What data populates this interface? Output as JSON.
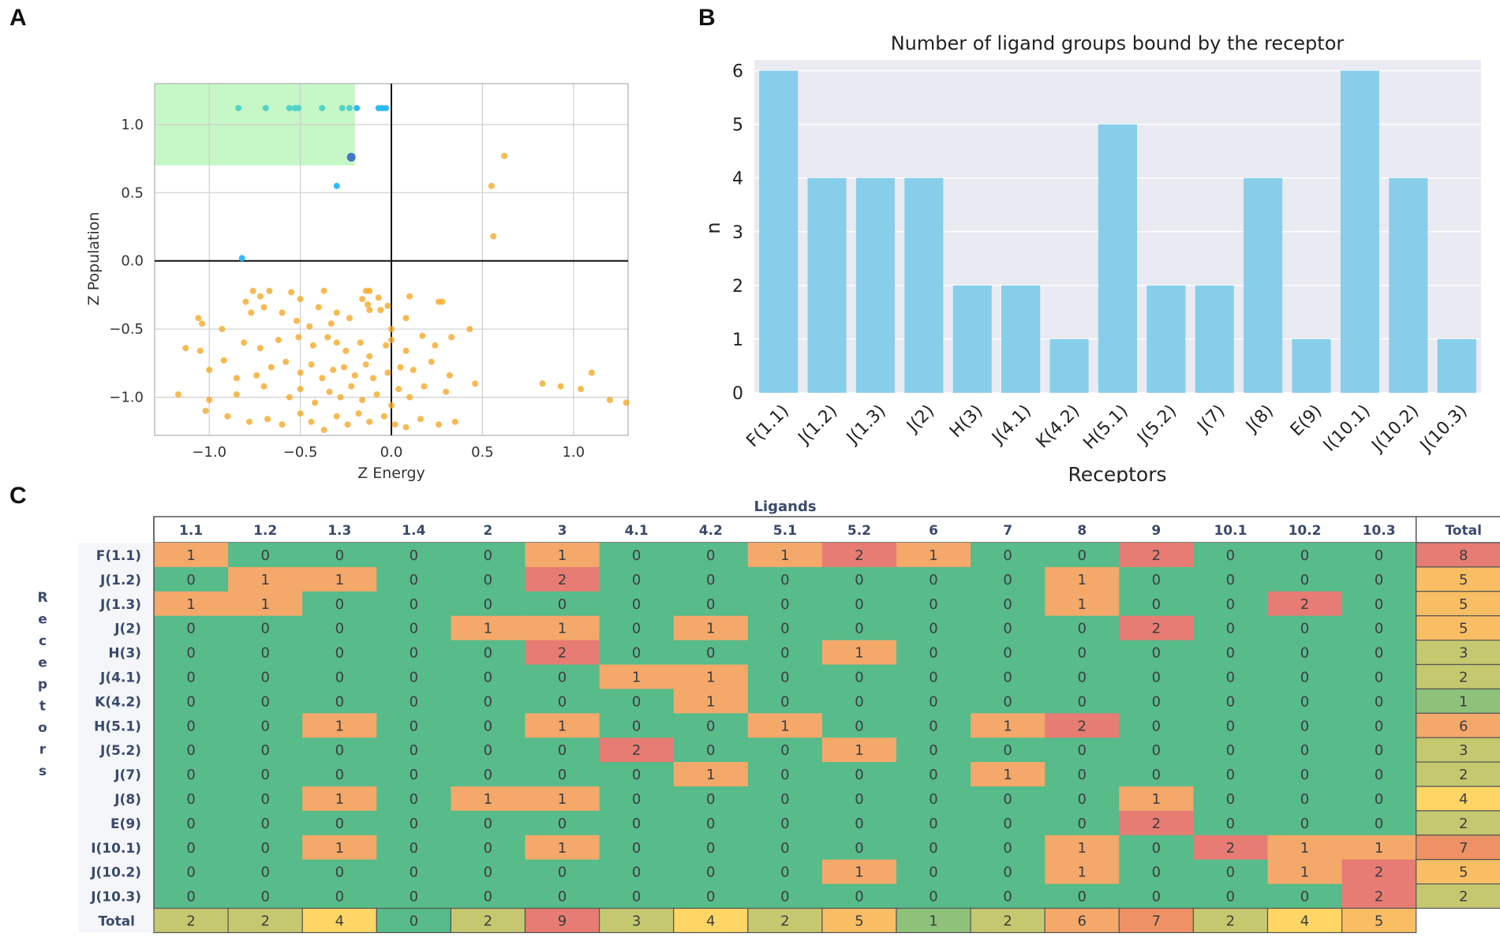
{
  "panels": {
    "a": "A",
    "b": "B",
    "c": "C"
  },
  "chart_data": [
    {
      "type": "scatter",
      "title": "",
      "xlabel": "Z Energy",
      "ylabel": "Z Population",
      "xlim": [
        -1.3,
        1.3
      ],
      "ylim": [
        -1.28,
        1.3
      ],
      "xticks": [
        -1.0,
        -0.5,
        0.0,
        0.5,
        1.0
      ],
      "xtick_labels": [
        "−1.0",
        "−0.5",
        "0.0",
        "0.5",
        "1.0"
      ],
      "yticks": [
        -1.0,
        -0.5,
        0.0,
        0.5,
        1.0
      ],
      "ytick_labels": [
        "−1.0",
        "−0.5",
        "0.0",
        "0.5",
        "1.0"
      ],
      "grid": true,
      "highlight_region": {
        "x": [
          -1.3,
          -0.2
        ],
        "y": [
          0.7,
          1.3
        ],
        "color": "#c6f7c6"
      },
      "colors": {
        "orange": "#f5a623",
        "light_blue": "#29b6f6",
        "teal": "#4dd0c8",
        "dark_blue": "#3a6ec8"
      },
      "series": [
        {
          "name": "highlighted-teal",
          "color": "#4dd0c8",
          "points": [
            [
              -0.84,
              1.12
            ],
            [
              -0.69,
              1.12
            ],
            [
              -0.56,
              1.12
            ],
            [
              -0.53,
              1.12
            ],
            [
              -0.51,
              1.12
            ],
            [
              -0.38,
              1.12
            ],
            [
              -0.27,
              1.12
            ],
            [
              -0.23,
              1.12
            ]
          ]
        },
        {
          "name": "highlighted-blue",
          "color": "#29b6f6",
          "points": [
            [
              -0.19,
              1.12
            ],
            [
              -0.07,
              1.12
            ],
            [
              -0.05,
              1.12
            ],
            [
              -0.03,
              1.12
            ],
            [
              -0.3,
              0.55
            ],
            [
              -0.82,
              0.02
            ]
          ]
        },
        {
          "name": "highlighted-dark",
          "color": "#3a6ec8",
          "points": [
            [
              -0.22,
              0.76
            ]
          ]
        },
        {
          "name": "other",
          "color": "#f5a623",
          "points": [
            [
              0.62,
              0.77
            ],
            [
              0.55,
              0.55
            ],
            [
              0.56,
              0.18
            ],
            [
              -0.76,
              -0.22
            ],
            [
              -0.72,
              -0.26
            ],
            [
              -0.67,
              -0.22
            ],
            [
              -0.55,
              -0.23
            ],
            [
              -0.37,
              -0.22
            ],
            [
              -0.14,
              -0.22
            ],
            [
              -0.12,
              -0.22
            ],
            [
              -0.07,
              -0.27
            ],
            [
              -0.8,
              -0.3
            ],
            [
              -0.7,
              -0.34
            ],
            [
              -0.5,
              -0.28
            ],
            [
              -0.4,
              -0.34
            ],
            [
              -0.3,
              -0.38
            ],
            [
              -0.16,
              -0.28
            ],
            [
              -0.13,
              -0.32
            ],
            [
              -0.12,
              -0.36
            ],
            [
              -0.02,
              -0.33
            ],
            [
              0.1,
              -0.26
            ],
            [
              0.26,
              -0.3
            ],
            [
              0.28,
              -0.3
            ],
            [
              -1.06,
              -0.42
            ],
            [
              -1.04,
              -0.46
            ],
            [
              -0.93,
              -0.5
            ],
            [
              -0.77,
              -0.38
            ],
            [
              -0.6,
              -0.38
            ],
            [
              -0.52,
              -0.44
            ],
            [
              -0.45,
              -0.48
            ],
            [
              -0.33,
              -0.46
            ],
            [
              -0.23,
              -0.42
            ],
            [
              -0.06,
              -0.36
            ],
            [
              0.0,
              -0.5
            ],
            [
              0.08,
              -0.42
            ],
            [
              0.43,
              -0.5
            ],
            [
              -1.13,
              -0.64
            ],
            [
              -1.05,
              -0.66
            ],
            [
              -0.92,
              -0.73
            ],
            [
              -0.81,
              -0.6
            ],
            [
              -0.72,
              -0.64
            ],
            [
              -0.62,
              -0.58
            ],
            [
              -0.51,
              -0.56
            ],
            [
              -0.43,
              -0.62
            ],
            [
              -0.35,
              -0.56
            ],
            [
              -0.3,
              -0.6
            ],
            [
              -0.25,
              -0.66
            ],
            [
              -0.17,
              -0.6
            ],
            [
              -0.12,
              -0.7
            ],
            [
              -0.03,
              -0.62
            ],
            [
              0.0,
              -0.58
            ],
            [
              0.08,
              -0.66
            ],
            [
              0.17,
              -0.55
            ],
            [
              0.24,
              -0.62
            ],
            [
              0.33,
              -0.56
            ],
            [
              -1.0,
              -0.8
            ],
            [
              -0.85,
              -0.86
            ],
            [
              -0.74,
              -0.84
            ],
            [
              -0.66,
              -0.78
            ],
            [
              -0.58,
              -0.74
            ],
            [
              -0.5,
              -0.82
            ],
            [
              -0.44,
              -0.76
            ],
            [
              -0.38,
              -0.86
            ],
            [
              -0.32,
              -0.8
            ],
            [
              -0.26,
              -0.78
            ],
            [
              -0.2,
              -0.84
            ],
            [
              -0.14,
              -0.76
            ],
            [
              -0.1,
              -0.86
            ],
            [
              -0.02,
              -0.82
            ],
            [
              0.05,
              -0.78
            ],
            [
              0.12,
              -0.8
            ],
            [
              0.22,
              -0.74
            ],
            [
              0.32,
              -0.84
            ],
            [
              -1.17,
              -0.98
            ],
            [
              -1.0,
              -1.02
            ],
            [
              -0.85,
              -0.98
            ],
            [
              -0.7,
              -0.92
            ],
            [
              -0.56,
              -1.0
            ],
            [
              -0.5,
              -0.94
            ],
            [
              -0.42,
              -1.04
            ],
            [
              -0.34,
              -0.96
            ],
            [
              -0.28,
              -1.0
            ],
            [
              -0.22,
              -0.92
            ],
            [
              -0.16,
              -1.02
            ],
            [
              -0.08,
              -0.98
            ],
            [
              0.0,
              -1.06
            ],
            [
              0.04,
              -0.94
            ],
            [
              0.1,
              -1.0
            ],
            [
              0.18,
              -0.92
            ],
            [
              0.3,
              -0.96
            ],
            [
              0.46,
              -0.9
            ],
            [
              -1.02,
              -1.1
            ],
            [
              -0.9,
              -1.14
            ],
            [
              -0.78,
              -1.18
            ],
            [
              -0.68,
              -1.16
            ],
            [
              -0.6,
              -1.2
            ],
            [
              -0.5,
              -1.12
            ],
            [
              -0.44,
              -1.18
            ],
            [
              -0.37,
              -1.24
            ],
            [
              -0.3,
              -1.14
            ],
            [
              -0.24,
              -1.2
            ],
            [
              -0.18,
              -1.12
            ],
            [
              -0.12,
              -1.18
            ],
            [
              -0.04,
              -1.14
            ],
            [
              0.02,
              -1.2
            ],
            [
              0.08,
              -1.22
            ],
            [
              0.16,
              -1.16
            ],
            [
              0.26,
              -1.2
            ],
            [
              0.35,
              -1.18
            ],
            [
              0.83,
              -0.9
            ],
            [
              0.93,
              -0.92
            ],
            [
              1.04,
              -0.94
            ],
            [
              1.1,
              -0.82
            ],
            [
              1.2,
              -1.02
            ],
            [
              1.29,
              -1.04
            ]
          ]
        }
      ]
    },
    {
      "type": "bar",
      "title": "Number of ligand groups bound by the receptor",
      "xlabel": "Receptors",
      "ylabel": "n",
      "ylim": [
        0,
        6.2
      ],
      "yticks": [
        0,
        1,
        2,
        3,
        4,
        5,
        6
      ],
      "grid": true,
      "bar_color": "#87ceeb",
      "background_color": "#eaeaf2",
      "categories": [
        "F(1.1)",
        "J(1.2)",
        "J(1.3)",
        "J(2)",
        "H(3)",
        "J(4.1)",
        "K(4.2)",
        "H(5.1)",
        "J(5.2)",
        "J(7)",
        "J(8)",
        "E(9)",
        "I(10.1)",
        "J(10.2)",
        "J(10.3)"
      ],
      "values": [
        6,
        4,
        4,
        4,
        2,
        2,
        1,
        5,
        2,
        2,
        4,
        1,
        6,
        4,
        1
      ]
    },
    {
      "type": "table",
      "title": "Ligands",
      "row_axis_label": "Receptors",
      "columns": [
        "1.1",
        "1.2",
        "1.3",
        "1.4",
        "2",
        "3",
        "4.1",
        "4.2",
        "5.1",
        "5.2",
        "6",
        "7",
        "8",
        "9",
        "10.1",
        "10.2",
        "10.3"
      ],
      "total_label": "Total",
      "rows": [
        {
          "label": "F(1.1)",
          "values": [
            1,
            0,
            0,
            0,
            0,
            1,
            0,
            0,
            1,
            2,
            1,
            0,
            0,
            2,
            0,
            0,
            0
          ],
          "total": 8
        },
        {
          "label": "J(1.2)",
          "values": [
            0,
            1,
            1,
            0,
            0,
            2,
            0,
            0,
            0,
            0,
            0,
            0,
            1,
            0,
            0,
            0,
            0
          ],
          "total": 5
        },
        {
          "label": "J(1.3)",
          "values": [
            1,
            1,
            0,
            0,
            0,
            0,
            0,
            0,
            0,
            0,
            0,
            0,
            1,
            0,
            0,
            2,
            0
          ],
          "total": 5
        },
        {
          "label": "J(2)",
          "values": [
            0,
            0,
            0,
            0,
            1,
            1,
            0,
            1,
            0,
            0,
            0,
            0,
            0,
            2,
            0,
            0,
            0
          ],
          "total": 5
        },
        {
          "label": "H(3)",
          "values": [
            0,
            0,
            0,
            0,
            0,
            2,
            0,
            0,
            0,
            1,
            0,
            0,
            0,
            0,
            0,
            0,
            0
          ],
          "total": 3
        },
        {
          "label": "J(4.1)",
          "values": [
            0,
            0,
            0,
            0,
            0,
            0,
            1,
            1,
            0,
            0,
            0,
            0,
            0,
            0,
            0,
            0,
            0
          ],
          "total": 2
        },
        {
          "label": "K(4.2)",
          "values": [
            0,
            0,
            0,
            0,
            0,
            0,
            0,
            1,
            0,
            0,
            0,
            0,
            0,
            0,
            0,
            0,
            0
          ],
          "total": 1
        },
        {
          "label": "H(5.1)",
          "values": [
            0,
            0,
            1,
            0,
            0,
            1,
            0,
            0,
            1,
            0,
            0,
            1,
            2,
            0,
            0,
            0,
            0
          ],
          "total": 6
        },
        {
          "label": "J(5.2)",
          "values": [
            0,
            0,
            0,
            0,
            0,
            0,
            2,
            0,
            0,
            1,
            0,
            0,
            0,
            0,
            0,
            0,
            0
          ],
          "total": 3
        },
        {
          "label": "J(7)",
          "values": [
            0,
            0,
            0,
            0,
            0,
            0,
            0,
            1,
            0,
            0,
            0,
            1,
            0,
            0,
            0,
            0,
            0
          ],
          "total": 2
        },
        {
          "label": "J(8)",
          "values": [
            0,
            0,
            1,
            0,
            1,
            1,
            0,
            0,
            0,
            0,
            0,
            0,
            0,
            1,
            0,
            0,
            0
          ],
          "total": 4
        },
        {
          "label": "E(9)",
          "values": [
            0,
            0,
            0,
            0,
            0,
            0,
            0,
            0,
            0,
            0,
            0,
            0,
            0,
            2,
            0,
            0,
            0
          ],
          "total": 2
        },
        {
          "label": "I(10.1)",
          "values": [
            0,
            0,
            1,
            0,
            0,
            1,
            0,
            0,
            0,
            0,
            0,
            0,
            1,
            0,
            2,
            1,
            1
          ],
          "total": 7
        },
        {
          "label": "J(10.2)",
          "values": [
            0,
            0,
            0,
            0,
            0,
            0,
            0,
            0,
            0,
            1,
            0,
            0,
            1,
            0,
            0,
            1,
            2
          ],
          "total": 5
        },
        {
          "label": "J(10.3)",
          "values": [
            0,
            0,
            0,
            0,
            0,
            0,
            0,
            0,
            0,
            0,
            0,
            0,
            0,
            0,
            0,
            0,
            2
          ],
          "total": 2
        }
      ],
      "column_totals": [
        2,
        2,
        4,
        0,
        2,
        9,
        3,
        4,
        2,
        5,
        1,
        2,
        6,
        7,
        2,
        4,
        5
      ],
      "cell_colors": {
        "0": "#57bb8a",
        "1": "#f4a86a",
        "2": "#e67c73"
      },
      "total_colors": {
        "0": "#57bb8a",
        "1": "#8ec27a",
        "2": "#c5c86f",
        "3": "#c5c86f",
        "4": "#ffd666",
        "5": "#f9be64",
        "6": "#f4a86a",
        "7": "#ee9266",
        "8": "#e67c73",
        "9": "#e67c73"
      }
    }
  ]
}
